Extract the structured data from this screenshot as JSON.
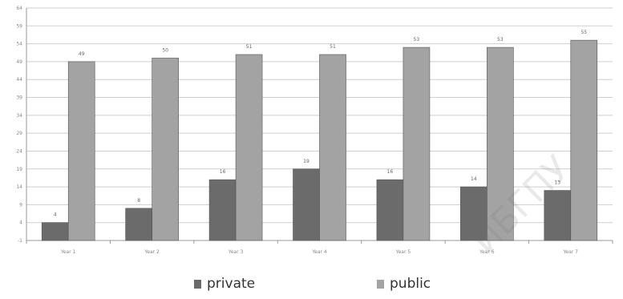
{
  "chart_data": {
    "type": "bar",
    "title": "",
    "xlabel": "",
    "ylabel": "",
    "ylim": [
      -1,
      64
    ],
    "y_ticks": [
      -1,
      4,
      9,
      14,
      19,
      24,
      29,
      34,
      39,
      44,
      49,
      54,
      59,
      64
    ],
    "y_tick_labels": [
      "-1",
      "4",
      "9",
      "14",
      "19",
      "24",
      "29",
      "34",
      "39",
      "44",
      "49",
      "54",
      "59",
      "64"
    ],
    "grid": true,
    "legend_position": "bottom",
    "categories": [
      "Year 1",
      "Year 2",
      "Year 3",
      "Year 4",
      "Year 5",
      "Year 6",
      "Year 7"
    ],
    "series": [
      {
        "name": "private",
        "color": "#6b6b6b",
        "values": [
          4,
          8,
          16,
          19,
          16,
          14,
          13
        ],
        "data_labels": [
          "4",
          "8",
          "16",
          "19",
          "16",
          "14",
          "13"
        ]
      },
      {
        "name": "public",
        "color": "#a3a3a3",
        "values": [
          49,
          50,
          51,
          51,
          53,
          53,
          55
        ],
        "data_labels": [
          "49",
          "50",
          "51",
          "51",
          "53",
          "53",
          "55"
        ]
      }
    ]
  },
  "watermark": "ЙБГПУ"
}
